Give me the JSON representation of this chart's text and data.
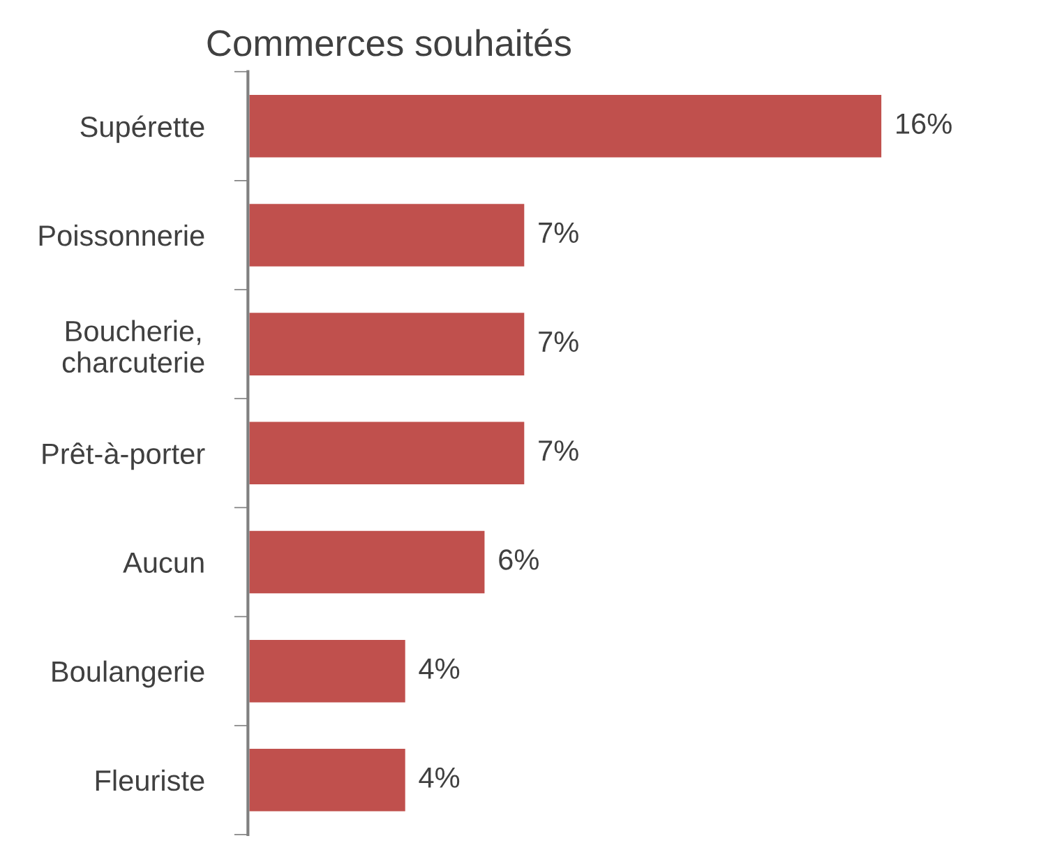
{
  "chart_data": {
    "type": "bar",
    "orientation": "horizontal",
    "title": "Commerces souhaités",
    "categories": [
      "Supérette",
      "Poissonnerie",
      "Boucherie,\ncharcuterie",
      "Prêt-à-porter",
      "Aucun",
      "Boulangerie",
      "Fleuriste"
    ],
    "values": [
      16,
      7,
      7,
      7,
      6,
      4,
      4
    ],
    "value_labels": [
      "16%",
      "7%",
      "7%",
      "7%",
      "6%",
      "4%",
      "4%"
    ],
    "color": "#c0504d",
    "grid": false,
    "legend": false
  }
}
